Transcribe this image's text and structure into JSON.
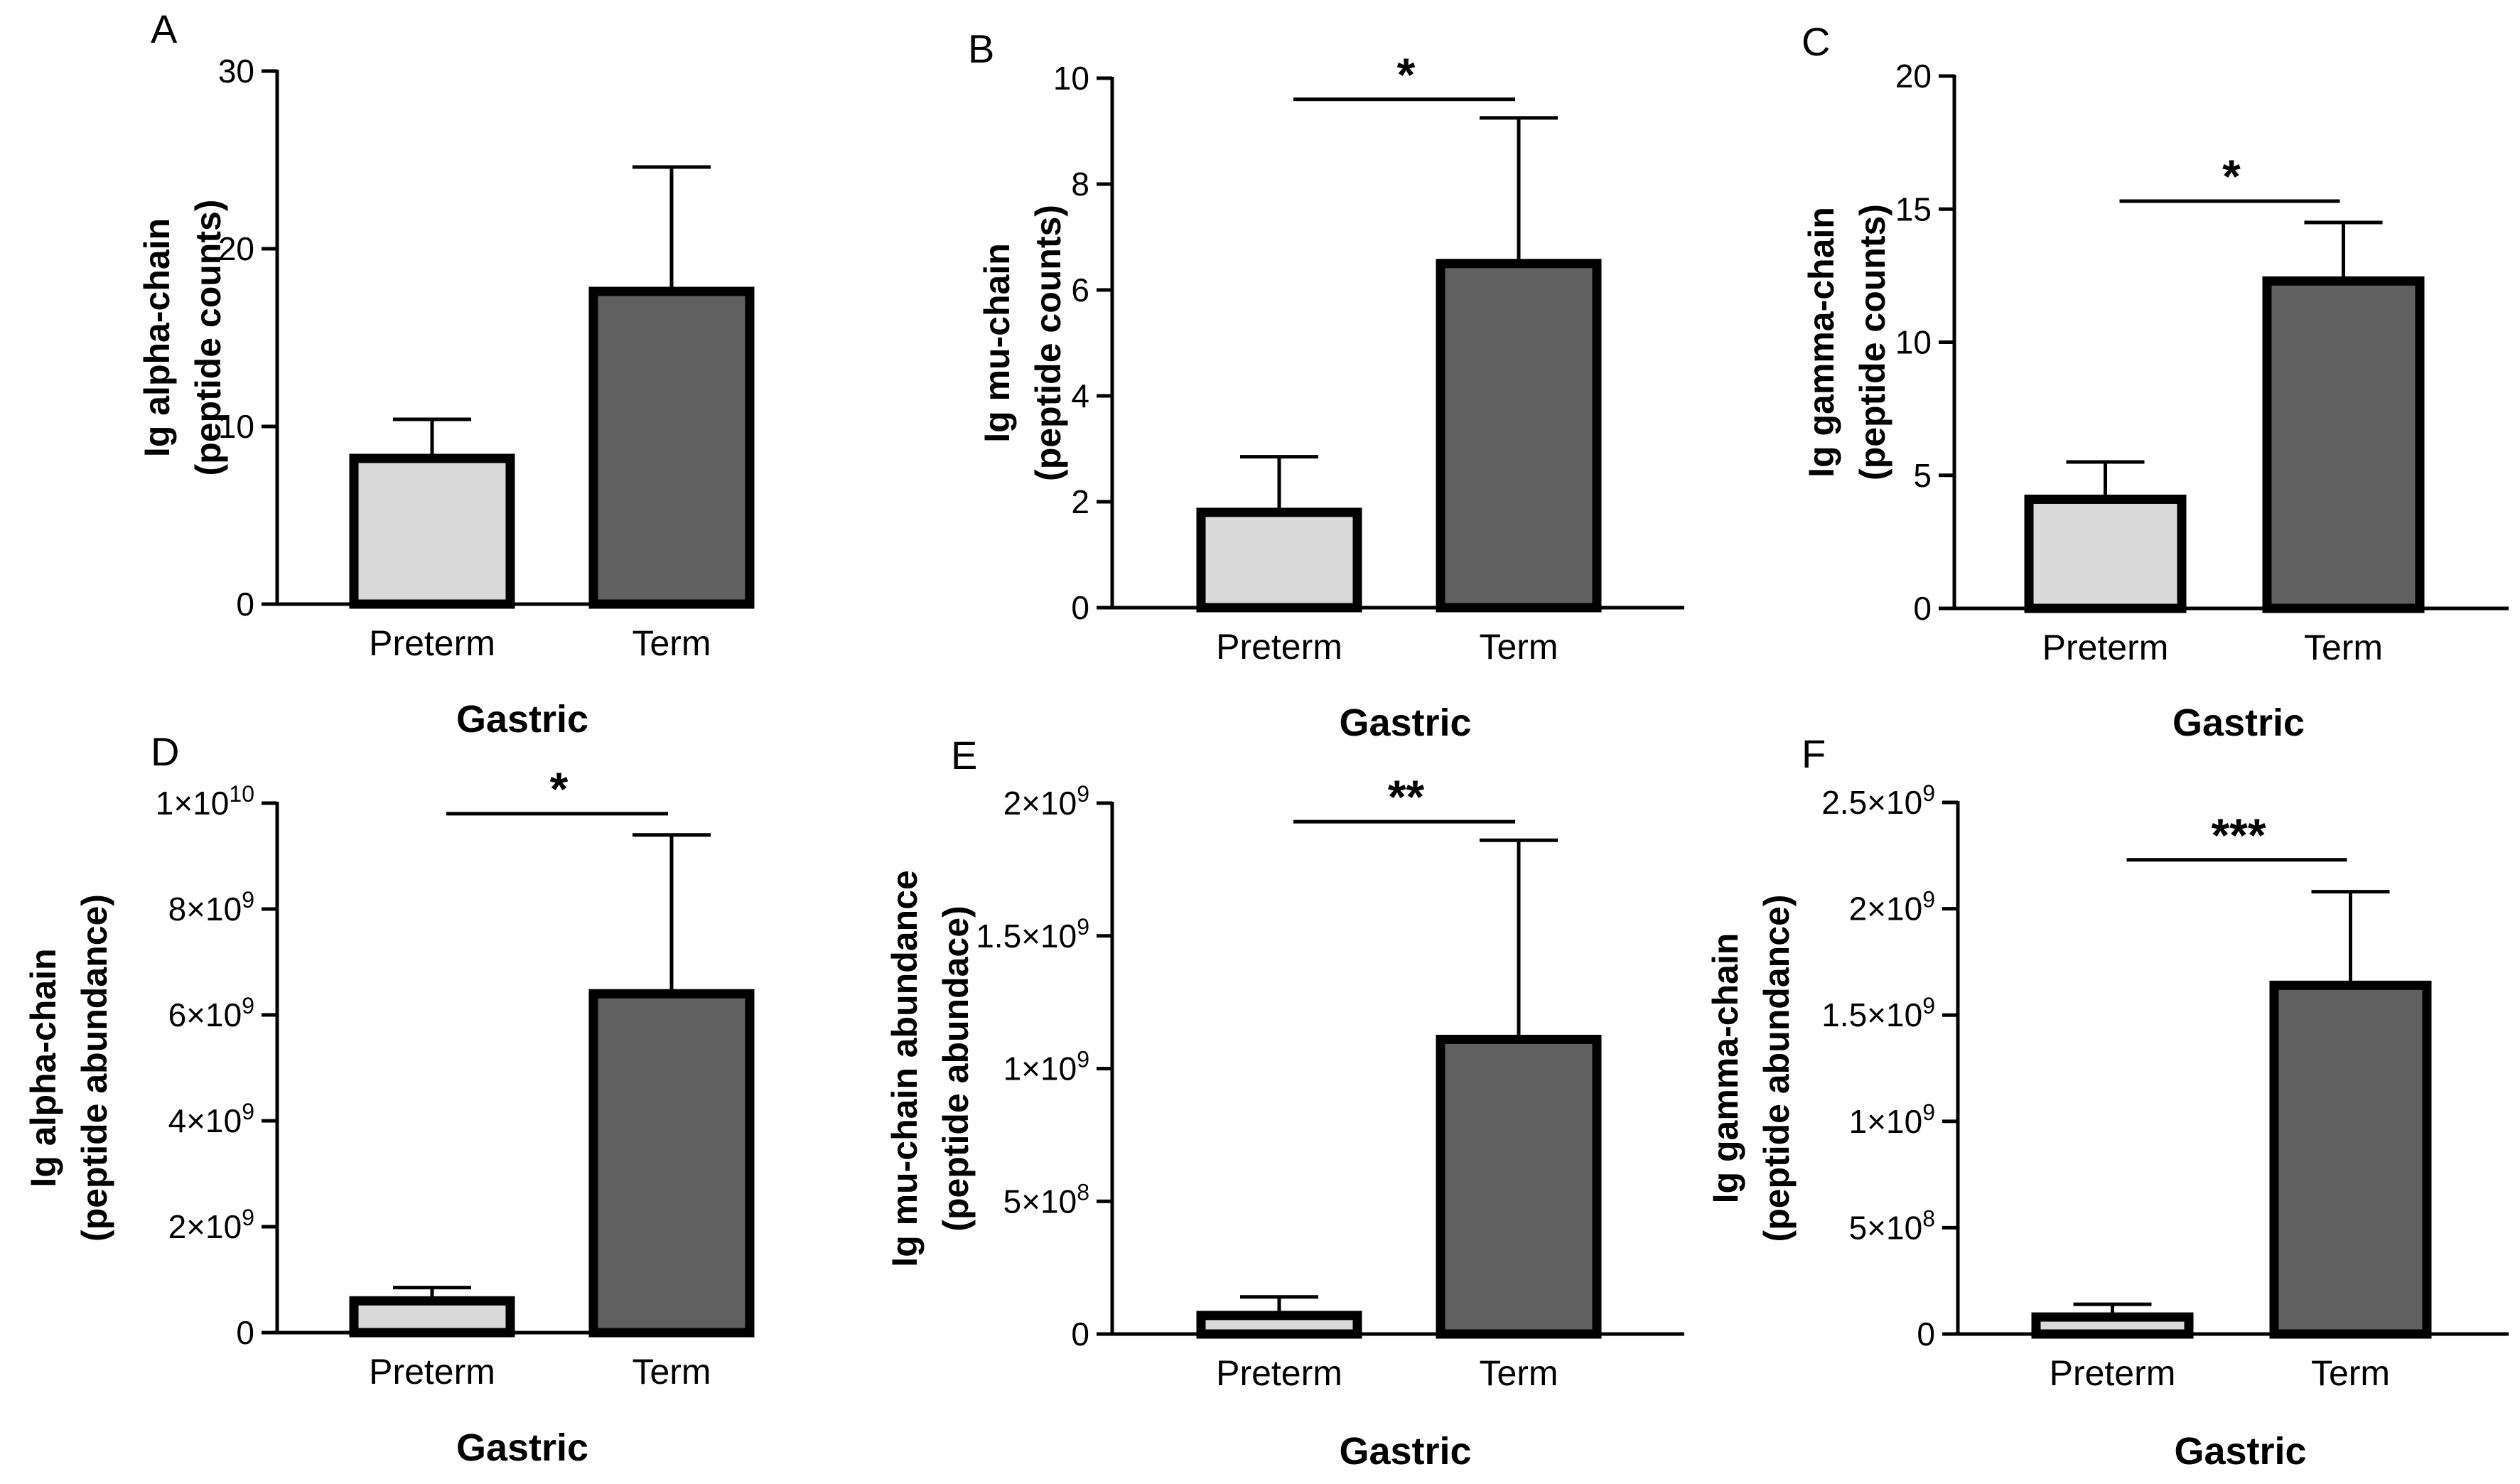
{
  "figure": {
    "colors": {
      "preterm_fill": "#d9d9d9",
      "term_fill": "#606060",
      "ink": "#000000"
    }
  },
  "chart_data": [
    {
      "panel_label": "A",
      "type": "bar",
      "categories": [
        "Preterm",
        "Term"
      ],
      "values": [
        8.2,
        17.6
      ],
      "errors": [
        2.2,
        7.0
      ],
      "ylabel": [
        "Ig alpha-chain",
        "(peptide counts)"
      ],
      "xlabel": "Gastric",
      "ylim": [
        0,
        30
      ],
      "ticks": [
        {
          "value": 0,
          "label": "0"
        },
        {
          "value": 10,
          "label": "10"
        },
        {
          "value": 20,
          "label": "20"
        },
        {
          "value": 30,
          "label": "30"
        }
      ],
      "significance": ""
    },
    {
      "panel_label": "B",
      "type": "bar",
      "categories": [
        "Preterm",
        "Term"
      ],
      "values": [
        1.8,
        6.5
      ],
      "errors": [
        1.05,
        2.75
      ],
      "ylabel": [
        "Ig mu-chain",
        "(peptide counts)"
      ],
      "xlabel": "Gastric",
      "ylim": [
        0,
        10
      ],
      "ticks": [
        {
          "value": 0,
          "label": "0"
        },
        {
          "value": 2,
          "label": "2"
        },
        {
          "value": 4,
          "label": "4"
        },
        {
          "value": 6,
          "label": "6"
        },
        {
          "value": 8,
          "label": "8"
        },
        {
          "value": 10,
          "label": "10"
        }
      ],
      "significance": "*",
      "sig_level": 9.6
    },
    {
      "panel_label": "C",
      "type": "bar",
      "categories": [
        "Preterm",
        "Term"
      ],
      "values": [
        4.1,
        12.3
      ],
      "errors": [
        1.4,
        2.2
      ],
      "ylabel": [
        "Ig gamma-chain",
        "(peptide counts)"
      ],
      "xlabel": "Gastric",
      "ylim": [
        0,
        20
      ],
      "ticks": [
        {
          "value": 0,
          "label": "0"
        },
        {
          "value": 5,
          "label": "5"
        },
        {
          "value": 10,
          "label": "10"
        },
        {
          "value": 15,
          "label": "15"
        },
        {
          "value": 20,
          "label": "20"
        }
      ],
      "significance": "*",
      "sig_level": 15.3
    },
    {
      "panel_label": "D",
      "type": "bar",
      "categories": [
        "Preterm",
        "Term"
      ],
      "values": [
        600000000,
        6400000000
      ],
      "errors": [
        250000000,
        3000000000
      ],
      "ylabel": [
        "Ig alpha-chain",
        "(peptide abundance)"
      ],
      "xlabel": "Gastric",
      "ylim": [
        0,
        10000000000
      ],
      "ticks": [
        {
          "value": 0,
          "label": "0"
        },
        {
          "value": 2000000000,
          "label": "2×10",
          "exp": "9"
        },
        {
          "value": 4000000000,
          "label": "4×10",
          "exp": "9"
        },
        {
          "value": 6000000000,
          "label": "6×10",
          "exp": "9"
        },
        {
          "value": 8000000000,
          "label": "8×10",
          "exp": "9"
        },
        {
          "value": 10000000000,
          "label": "1×10",
          "exp": "10"
        }
      ],
      "significance": "*",
      "sig_level": 9800000000
    },
    {
      "panel_label": "E",
      "type": "bar",
      "categories": [
        "Preterm",
        "Term"
      ],
      "values": [
        70000000,
        1110000000
      ],
      "errors": [
        70000000,
        750000000
      ],
      "ylabel": [
        "Ig mu-chain abundance",
        "(peptide abundace)"
      ],
      "xlabel": "Gastric",
      "ylim": [
        0,
        2000000000
      ],
      "ticks": [
        {
          "value": 0,
          "label": "0"
        },
        {
          "value": 500000000,
          "label": "5×10",
          "exp": "8"
        },
        {
          "value": 1000000000,
          "label": "1×10",
          "exp": "9"
        },
        {
          "value": 1500000000,
          "label": "1.5×10",
          "exp": "9"
        },
        {
          "value": 2000000000,
          "label": "2×10",
          "exp": "9"
        }
      ],
      "significance": "**",
      "sig_level": 1930000000
    },
    {
      "panel_label": "F",
      "type": "bar",
      "categories": [
        "Preterm",
        "Term"
      ],
      "values": [
        80000000,
        1640000000
      ],
      "errors": [
        60000000,
        440000000
      ],
      "ylabel": [
        "Ig gamma-chain",
        "(peptide abundance)"
      ],
      "xlabel": "Gastric",
      "ylim": [
        0,
        2500000000
      ],
      "ticks": [
        {
          "value": 0,
          "label": "0"
        },
        {
          "value": 500000000,
          "label": "5×10",
          "exp": "8"
        },
        {
          "value": 1000000000,
          "label": "1×10",
          "exp": "9"
        },
        {
          "value": 1500000000,
          "label": "1.5×10",
          "exp": "9"
        },
        {
          "value": 2000000000,
          "label": "2×10",
          "exp": "9"
        },
        {
          "value": 2500000000,
          "label": "2.5×10",
          "exp": "9"
        }
      ],
      "significance": "***",
      "sig_level": 2230000000
    }
  ]
}
